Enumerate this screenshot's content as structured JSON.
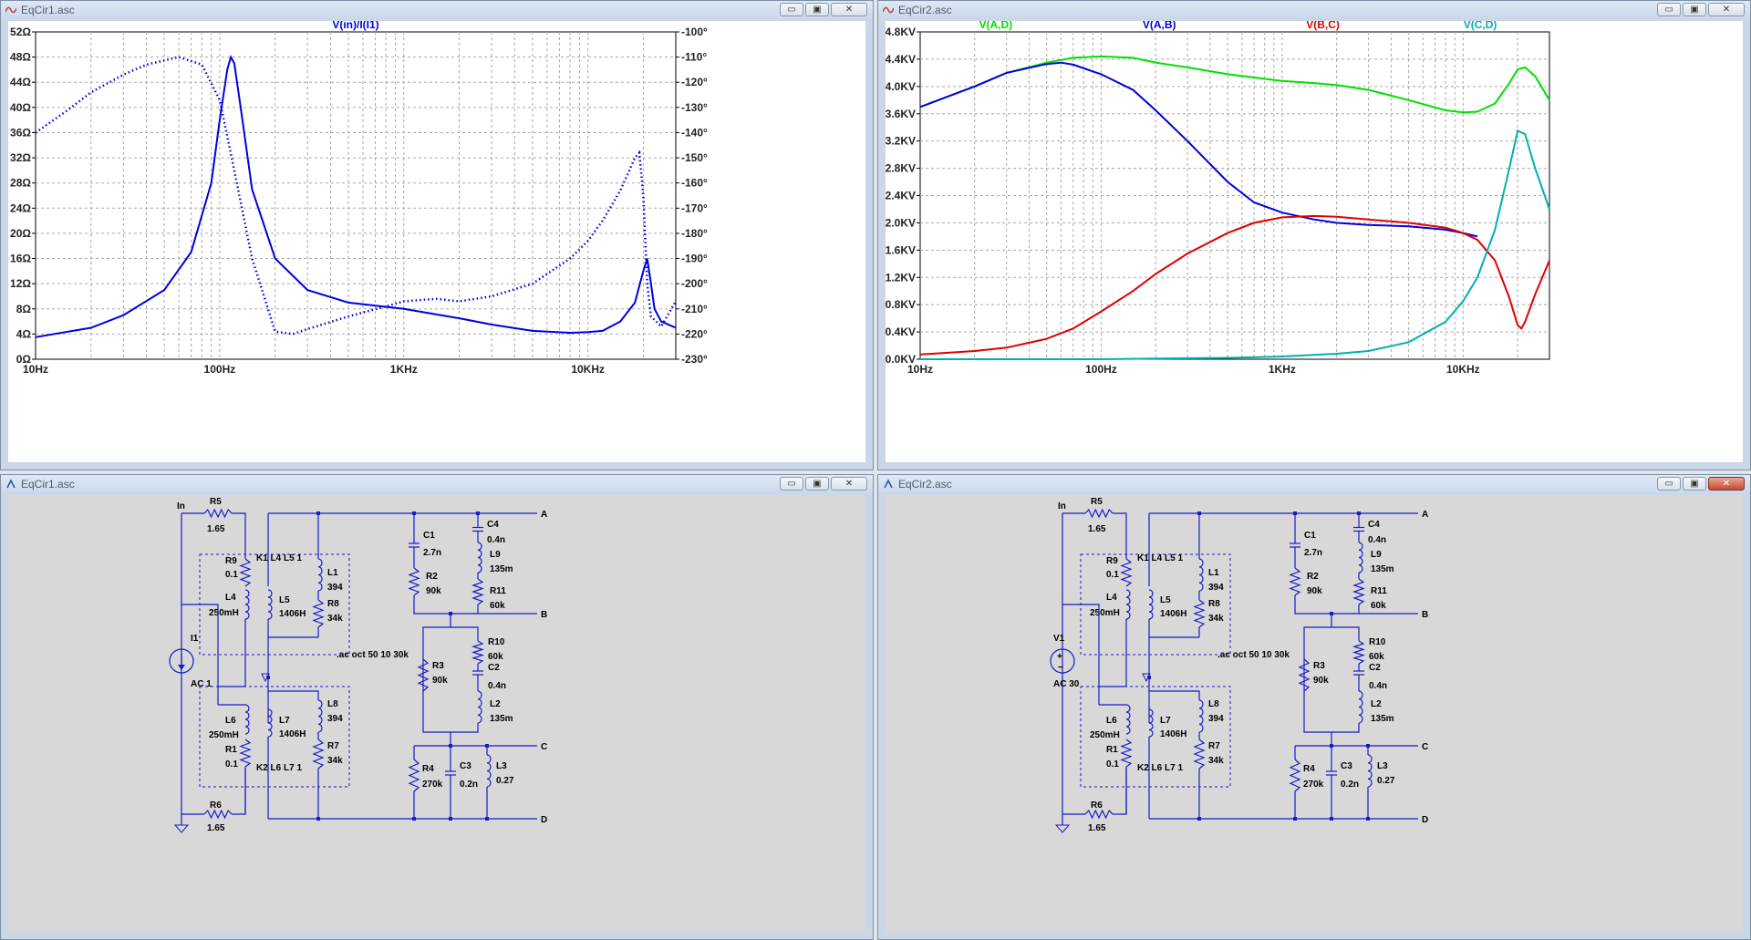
{
  "windows": {
    "w1": {
      "title": "EqCir1.asc"
    },
    "w2": {
      "title": "EqCir2.asc"
    },
    "w3": {
      "title": "EqCir1.asc"
    },
    "w4": {
      "title": "EqCir2.asc"
    }
  },
  "controls": {
    "minimize": "▭",
    "restore": "▣",
    "close": "✕"
  },
  "colors": {
    "blue": "#0000e0",
    "green": "#00e000",
    "red": "#e00000",
    "cyan": "#00b0b0",
    "wire": "#1a1ac8"
  },
  "chart_data": [
    {
      "type": "line",
      "title": "V(in)/I(I1)",
      "x_scale": "log",
      "xlim": [
        10,
        30000
      ],
      "xticks": [
        "10Hz",
        "100Hz",
        "1KHz",
        "10KHz"
      ],
      "ylim": [
        0,
        52
      ],
      "yticks_left": [
        "52Ω",
        "48Ω",
        "44Ω",
        "40Ω",
        "36Ω",
        "32Ω",
        "28Ω",
        "24Ω",
        "20Ω",
        "16Ω",
        "12Ω",
        "8Ω",
        "4Ω",
        "0Ω"
      ],
      "y2lim": [
        -230,
        -100
      ],
      "yticks_right": [
        "-100°",
        "-110°",
        "-120°",
        "-130°",
        "-140°",
        "-150°",
        "-160°",
        "-170°",
        "-180°",
        "-190°",
        "-200°",
        "-210°",
        "-220°",
        "-230°"
      ],
      "grid": true,
      "series": [
        {
          "name": "V(in)/I(I1)",
          "axis": "left",
          "style": "solid",
          "color": "#0000e0",
          "x": [
            10,
            20,
            30,
            50,
            70,
            90,
            100,
            110,
            115,
            120,
            130,
            150,
            200,
            300,
            500,
            1000,
            2000,
            3000,
            5000,
            8000,
            10000,
            12000,
            15000,
            18000,
            20000,
            21000,
            22000,
            23000,
            25000,
            30000
          ],
          "y": [
            3.5,
            5,
            7,
            11,
            17,
            28,
            38,
            46,
            48,
            47,
            40,
            27,
            16,
            11,
            9,
            8,
            6.5,
            5.5,
            4.5,
            4.2,
            4.3,
            4.5,
            6,
            9,
            14,
            16,
            12,
            8,
            6,
            5
          ]
        },
        {
          "name": "phase",
          "axis": "right",
          "style": "dotted",
          "color": "#0000e0",
          "x": [
            10,
            15,
            20,
            30,
            40,
            60,
            80,
            100,
            120,
            150,
            200,
            250,
            300,
            500,
            800,
            1000,
            1500,
            2000,
            3000,
            5000,
            8000,
            10000,
            12000,
            15000,
            18000,
            19000,
            20000,
            21000,
            22000,
            25000,
            30000
          ],
          "y": [
            -140,
            -131,
            -124,
            -117,
            -113,
            -110,
            -113,
            -127,
            -155,
            -190,
            -219,
            -220,
            -218,
            -213,
            -209,
            -207,
            -206,
            -207,
            -205,
            -200,
            -190,
            -183,
            -175,
            -163,
            -150,
            -148,
            -165,
            -200,
            -213,
            -217,
            -207
          ]
        }
      ]
    },
    {
      "type": "line",
      "title": "",
      "x_scale": "log",
      "xlim": [
        10,
        30000
      ],
      "xticks": [
        "10Hz",
        "100Hz",
        "1KHz",
        "10KHz"
      ],
      "ylim": [
        0,
        4.8
      ],
      "yticks": [
        "4.8KV",
        "4.4KV",
        "4.0KV",
        "3.6KV",
        "3.2KV",
        "2.8KV",
        "2.4KV",
        "2.0KV",
        "1.6KV",
        "1.2KV",
        "0.8KV",
        "0.4KV",
        "0.0KV"
      ],
      "grid": true,
      "legend": "top",
      "series": [
        {
          "name": "V(A,D)",
          "color": "#00e000",
          "x": [
            10,
            20,
            30,
            50,
            70,
            100,
            150,
            200,
            300,
            500,
            1000,
            1500,
            2000,
            3000,
            5000,
            8000,
            10000,
            12000,
            15000,
            18000,
            20000,
            22000,
            25000,
            30000
          ],
          "y": [
            3.7,
            4.0,
            4.2,
            4.35,
            4.42,
            4.44,
            4.42,
            4.35,
            4.28,
            4.18,
            4.08,
            4.05,
            4.02,
            3.95,
            3.8,
            3.65,
            3.62,
            3.63,
            3.75,
            4.05,
            4.25,
            4.28,
            4.15,
            3.8
          ]
        },
        {
          "name": "V(A,B)",
          "color": "#0000e0",
          "x": [
            10,
            20,
            30,
            50,
            60,
            70,
            100,
            150,
            200,
            300,
            500,
            700,
            1000,
            1500,
            2000,
            3000,
            5000,
            8000,
            10000,
            12000
          ],
          "y": [
            3.7,
            4.0,
            4.2,
            4.33,
            4.35,
            4.32,
            4.18,
            3.95,
            3.65,
            3.2,
            2.6,
            2.3,
            2.15,
            2.05,
            2.0,
            1.97,
            1.95,
            1.9,
            1.85,
            1.8
          ]
        },
        {
          "name": "V(B,C)",
          "color": "#e00000",
          "x": [
            10,
            20,
            30,
            50,
            70,
            100,
            150,
            200,
            300,
            500,
            700,
            1000,
            1500,
            2000,
            3000,
            5000,
            8000,
            10000,
            12000,
            15000,
            18000,
            20000,
            21000,
            22000,
            25000,
            30000
          ],
          "y": [
            0.07,
            0.12,
            0.17,
            0.3,
            0.45,
            0.7,
            1.0,
            1.25,
            1.55,
            1.85,
            2.0,
            2.08,
            2.1,
            2.09,
            2.05,
            2.0,
            1.93,
            1.85,
            1.75,
            1.45,
            0.9,
            0.5,
            0.45,
            0.55,
            0.95,
            1.45
          ]
        },
        {
          "name": "V(C,D)",
          "color": "#00b0b0",
          "x": [
            10,
            100,
            200,
            500,
            1000,
            2000,
            3000,
            5000,
            8000,
            10000,
            12000,
            15000,
            18000,
            20000,
            22000,
            25000,
            30000
          ],
          "y": [
            0,
            0,
            0.01,
            0.02,
            0.04,
            0.08,
            0.12,
            0.25,
            0.55,
            0.85,
            1.2,
            1.9,
            2.8,
            3.35,
            3.3,
            2.8,
            2.2
          ]
        }
      ]
    }
  ],
  "schematic": {
    "net_in": "In",
    "net_a": "A",
    "net_b": "B",
    "net_c": "C",
    "net_d": "D",
    "r5": "R5",
    "r5v": "1.65",
    "r6": "R6",
    "r6v": "1.65",
    "r9": "R9",
    "r9v": "0.1",
    "k1": "K1 L4 L5  1",
    "l4": "L4",
    "l4v": "250mH",
    "l5": "L5",
    "l5v": "1406H",
    "l1": "L1",
    "l1v": "394",
    "r8": "R8",
    "r8v": "34k",
    "l6": "L6",
    "l6v": "250mH",
    "r1": "R1",
    "r1v": "0.1",
    "l7": "L7",
    "l7v": "1406H",
    "k2": "K2 L6 L7 1",
    "l8": "L8",
    "l8v": "394",
    "r7": "R7",
    "r7v": "34k",
    "c1": "C1",
    "c1v": "2.7n",
    "r2": "R2",
    "r2v": "90k",
    "c4": "C4",
    "c4v": "0.4n",
    "l9": "L9",
    "l9v": "135m",
    "r11": "R11",
    "r11v": "60k",
    "r3": "R3",
    "r3v": "90k",
    "r10": "R10",
    "r10v": "60k",
    "c2": "C2",
    "c2v": "0.4n",
    "l2": "L2",
    "l2v": "135m",
    "r4": "R4",
    "r4v": "270k",
    "c3": "C3",
    "c3v": "0.2n",
    "l3": "L3",
    "l3v": "0.27",
    "directive": ".ac oct 50 10 30k",
    "src1_name": "I1",
    "src1_val": "AC 1",
    "src2_name": "V1",
    "src2_val": "AC 30"
  }
}
